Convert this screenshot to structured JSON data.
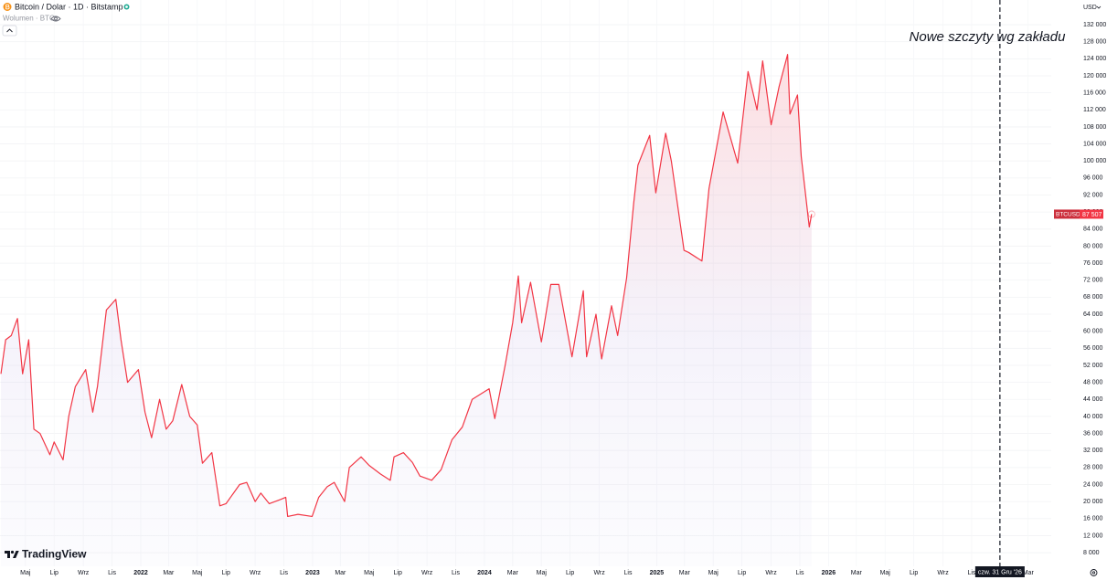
{
  "header": {
    "symbol_title": "Bitcoin / Dolar · 1D · Bitstamp",
    "volume_label": "Wolumen · BTC",
    "currency": "USD",
    "brand": "TradingView"
  },
  "chart_data": {
    "type": "line",
    "x": [
      "2021-03-10",
      "2021-03-20",
      "2021-04-01",
      "2021-04-14",
      "2021-04-25",
      "2021-05-08",
      "2021-05-19",
      "2021-06-01",
      "2021-06-22",
      "2021-07-01",
      "2021-07-20",
      "2021-08-01",
      "2021-08-15",
      "2021-09-06",
      "2021-09-21",
      "2021-10-01",
      "2021-10-20",
      "2021-11-09",
      "2021-11-20",
      "2021-12-04",
      "2021-12-27",
      "2022-01-10",
      "2022-01-24",
      "2022-02-10",
      "2022-02-24",
      "2022-03-10",
      "2022-03-29",
      "2022-04-15",
      "2022-05-01",
      "2022-05-12",
      "2022-06-01",
      "2022-06-18",
      "2022-07-01",
      "2022-07-30",
      "2022-08-14",
      "2022-09-01",
      "2022-09-13",
      "2022-10-01",
      "2022-10-25",
      "2022-11-05",
      "2022-11-09",
      "2022-12-01",
      "2022-12-31",
      "2023-01-14",
      "2023-02-01",
      "2023-02-16",
      "2023-03-10",
      "2023-03-20",
      "2023-04-14",
      "2023-05-01",
      "2023-05-25",
      "2023-06-15",
      "2023-06-23",
      "2023-07-13",
      "2023-08-01",
      "2023-08-17",
      "2023-09-11",
      "2023-10-01",
      "2023-10-24",
      "2023-11-15",
      "2023-12-06",
      "2024-01-11",
      "2024-01-23",
      "2024-02-14",
      "2024-03-01",
      "2024-03-13",
      "2024-03-20",
      "2024-04-08",
      "2024-05-01",
      "2024-05-21",
      "2024-06-07",
      "2024-07-05",
      "2024-07-29",
      "2024-08-05",
      "2024-08-25",
      "2024-09-06",
      "2024-09-27",
      "2024-10-10",
      "2024-10-29",
      "2024-11-13",
      "2024-11-22",
      "2024-12-17",
      "2024-12-30",
      "2025-01-20",
      "2025-02-01",
      "2025-02-28",
      "2025-03-10",
      "2025-04-07",
      "2025-04-22",
      "2025-05-22",
      "2025-06-22",
      "2025-07-14",
      "2025-08-02",
      "2025-08-14",
      "2025-09-01",
      "2025-09-18",
      "2025-10-06",
      "2025-10-11",
      "2025-10-27",
      "2025-11-04",
      "2025-11-21",
      "2025-11-26"
    ],
    "series": [
      {
        "name": "BTCUSD",
        "color": "#f23645",
        "values": [
          50000,
          58000,
          59000,
          63000,
          50000,
          58000,
          37000,
          36000,
          31000,
          34000,
          29800,
          40000,
          47000,
          51000,
          41000,
          47000,
          65000,
          67500,
          58000,
          48000,
          51000,
          41000,
          35000,
          44000,
          37000,
          39000,
          47500,
          40000,
          38000,
          29000,
          31500,
          19000,
          19500,
          24000,
          24500,
          20000,
          22000,
          19500,
          20500,
          21000,
          16500,
          17000,
          16500,
          21000,
          23500,
          24500,
          20000,
          28000,
          30500,
          28500,
          26500,
          25000,
          30500,
          31500,
          29200,
          26000,
          25000,
          27500,
          34500,
          37500,
          44000,
          46500,
          39500,
          52000,
          62000,
          73000,
          62000,
          71500,
          57500,
          71000,
          71000,
          54000,
          69500,
          54000,
          64000,
          53500,
          66000,
          59000,
          72500,
          90000,
          99000,
          106000,
          92500,
          106500,
          100000,
          79000,
          78500,
          76500,
          93500,
          111500,
          99500,
          121000,
          112000,
          123500,
          108500,
          117500,
          125000,
          111000,
          115500,
          101000,
          84500,
          87507
        ]
      }
    ],
    "last_value_label": "87 507",
    "xlim": [
      "2021-03-08",
      "2027-04-19"
    ],
    "ylim": [
      4800,
      137800
    ],
    "yticks": [
      {
        "value": 8000,
        "label": "8 000"
      },
      {
        "value": 12000,
        "label": "12 000"
      },
      {
        "value": 16000,
        "label": "16 000"
      },
      {
        "value": 20000,
        "label": "20 000"
      },
      {
        "value": 24000,
        "label": "24 000"
      },
      {
        "value": 28000,
        "label": "28 000"
      },
      {
        "value": 32000,
        "label": "32 000"
      },
      {
        "value": 36000,
        "label": "36 000"
      },
      {
        "value": 40000,
        "label": "40 000"
      },
      {
        "value": 44000,
        "label": "44 000"
      },
      {
        "value": 48000,
        "label": "48 000"
      },
      {
        "value": 52000,
        "label": "52 000"
      },
      {
        "value": 56000,
        "label": "56 000"
      },
      {
        "value": 60000,
        "label": "60 000"
      },
      {
        "value": 64000,
        "label": "64 000"
      },
      {
        "value": 68000,
        "label": "68 000"
      },
      {
        "value": 72000,
        "label": "72 000"
      },
      {
        "value": 76000,
        "label": "76 000"
      },
      {
        "value": 80000,
        "label": "80 000"
      },
      {
        "value": 84000,
        "label": "84 000"
      },
      {
        "value": 88000,
        "label": "88 000"
      },
      {
        "value": 92000,
        "label": "92 000"
      },
      {
        "value": 96000,
        "label": "96 000"
      },
      {
        "value": 100000,
        "label": "100 000"
      },
      {
        "value": 104000,
        "label": "104 000"
      },
      {
        "value": 108000,
        "label": "108 000"
      },
      {
        "value": 112000,
        "label": "112 000"
      },
      {
        "value": 116000,
        "label": "116 000"
      },
      {
        "value": 120000,
        "label": "120 000"
      },
      {
        "value": 124000,
        "label": "124 000"
      },
      {
        "value": 128000,
        "label": "128 000"
      },
      {
        "value": 132000,
        "label": "132 000"
      }
    ],
    "xticks": [
      {
        "value": "2021-05-01",
        "label": "Maj"
      },
      {
        "value": "2021-07-01",
        "label": "Lip"
      },
      {
        "value": "2021-09-01",
        "label": "Wrz"
      },
      {
        "value": "2021-11-01",
        "label": "Lis"
      },
      {
        "value": "2022-01-01",
        "label": "2022"
      },
      {
        "value": "2022-03-01",
        "label": "Mar"
      },
      {
        "value": "2022-05-01",
        "label": "Maj"
      },
      {
        "value": "2022-07-01",
        "label": "Lip"
      },
      {
        "value": "2022-09-01",
        "label": "Wrz"
      },
      {
        "value": "2022-11-01",
        "label": "Lis"
      },
      {
        "value": "2023-01-01",
        "label": "2023"
      },
      {
        "value": "2023-03-01",
        "label": "Mar"
      },
      {
        "value": "2023-05-01",
        "label": "Maj"
      },
      {
        "value": "2023-07-01",
        "label": "Lip"
      },
      {
        "value": "2023-09-01",
        "label": "Wrz"
      },
      {
        "value": "2023-11-01",
        "label": "Lis"
      },
      {
        "value": "2024-01-01",
        "label": "2024"
      },
      {
        "value": "2024-03-01",
        "label": "Mar"
      },
      {
        "value": "2024-05-01",
        "label": "Maj"
      },
      {
        "value": "2024-07-01",
        "label": "Lip"
      },
      {
        "value": "2024-09-01",
        "label": "Wrz"
      },
      {
        "value": "2024-11-01",
        "label": "Lis"
      },
      {
        "value": "2025-01-01",
        "label": "2025"
      },
      {
        "value": "2025-03-01",
        "label": "Mar"
      },
      {
        "value": "2025-05-01",
        "label": "Maj"
      },
      {
        "value": "2025-07-01",
        "label": "Lip"
      },
      {
        "value": "2025-09-01",
        "label": "Wrz"
      },
      {
        "value": "2025-11-01",
        "label": "Lis"
      },
      {
        "value": "2026-01-01",
        "label": "2026"
      },
      {
        "value": "2026-03-01",
        "label": "Mar"
      },
      {
        "value": "2026-05-01",
        "label": "Maj"
      },
      {
        "value": "2026-07-01",
        "label": "Lip"
      },
      {
        "value": "2026-09-01",
        "label": "Wrz"
      },
      {
        "value": "2026-11-01",
        "label": "Lis"
      },
      {
        "value": "2027-03-01",
        "label": "Mar"
      }
    ],
    "grid": true,
    "annotation": "Nowe szczyty wg zakładu",
    "crosshair": {
      "x": "2026-12-31",
      "label": "czw. 31 Gru '26"
    }
  }
}
